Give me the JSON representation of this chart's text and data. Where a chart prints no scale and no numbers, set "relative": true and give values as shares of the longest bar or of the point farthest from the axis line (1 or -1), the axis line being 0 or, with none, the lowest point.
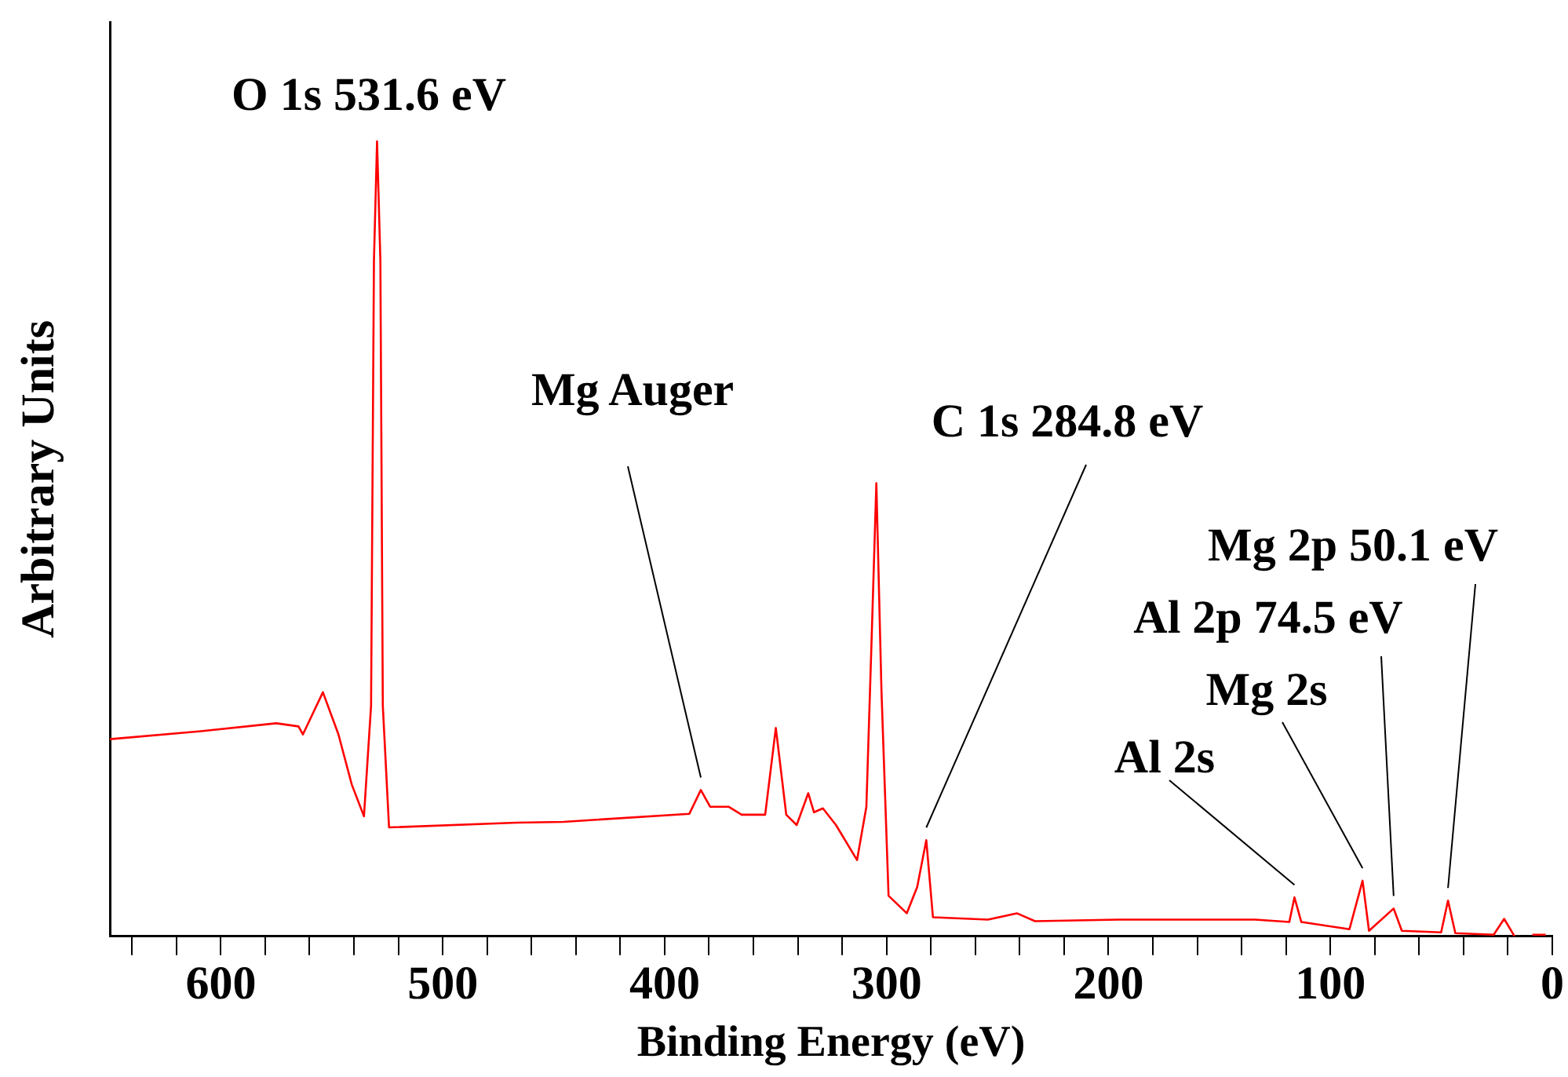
{
  "chart_data": {
    "type": "line",
    "relative": true,
    "xlabel": "Binding Energy (eV)",
    "ylabel": "Arbitrary Units",
    "xlim": [
      650,
      0
    ],
    "xticks": [
      {
        "value": 640,
        "label": null
      },
      {
        "value": 620,
        "label": null
      },
      600,
      {
        "value": 580,
        "label": null
      },
      {
        "value": 560,
        "label": null
      },
      {
        "value": 540,
        "label": null
      },
      {
        "value": 520,
        "label": null
      },
      500,
      {
        "value": 480,
        "label": null
      },
      {
        "value": 460,
        "label": null
      },
      {
        "value": 440,
        "label": null
      },
      {
        "value": 420,
        "label": null
      },
      400,
      {
        "value": 380,
        "label": null
      },
      {
        "value": 360,
        "label": null
      },
      {
        "value": 340,
        "label": null
      },
      {
        "value": 320,
        "label": null
      },
      300,
      {
        "value": 280,
        "label": null
      },
      {
        "value": 260,
        "label": null
      },
      {
        "value": 240,
        "label": null
      },
      {
        "value": 220,
        "label": null
      },
      200,
      {
        "value": 180,
        "label": null
      },
      {
        "value": 160,
        "label": null
      },
      {
        "value": 140,
        "label": null
      },
      {
        "value": 120,
        "label": null
      },
      100,
      {
        "value": 80,
        "label": null
      },
      {
        "value": 60,
        "label": null
      },
      {
        "value": 40,
        "label": null
      },
      {
        "value": 20,
        "label": null
      },
      0
    ],
    "series": [
      {
        "color": "#ff0000",
        "x": [
          650,
          609,
          575,
          565,
          563,
          554,
          547,
          541,
          535.5,
          532.3,
          531.0,
          529.6,
          528.1,
          527,
          524.2,
          466.8,
          445.6,
          388.9,
          383.7,
          379.5,
          371.2,
          365.3,
          354.7,
          349.9,
          345.2,
          340.5,
          335.3,
          332.7,
          328.7,
          322.8,
          313.3,
          309.1,
          306.7,
          304.6,
          302.3,
          299.1,
          290.9,
          286.2,
          282.1,
          279.1,
          254.3,
          241.3,
          233.1,
          195.3,
          133.9,
          118.5,
          116.2,
          113.1,
          91.4,
          85.5,
          82.6,
          71.5,
          67.8,
          50.1,
          47.0,
          43.7,
          26.4,
          21.7,
          17.0,
          12,
          9,
          3
        ],
        "values": [
          0.248,
          0.258,
          0.268,
          0.264,
          0.254,
          0.307,
          0.254,
          0.191,
          0.151,
          0.29,
          0.85,
          1.0,
          0.85,
          0.29,
          0.137,
          0.143,
          0.144,
          0.154,
          0.184,
          0.163,
          0.163,
          0.153,
          0.153,
          0.262,
          0.153,
          0.14,
          0.18,
          0.156,
          0.161,
          0.14,
          0.096,
          0.163,
          0.377,
          0.57,
          0.309,
          0.051,
          0.029,
          0.062,
          0.121,
          0.024,
          0.021,
          0.029,
          0.019,
          0.021,
          0.021,
          0.018,
          0.049,
          0.018,
          0.009,
          0.07,
          0.007,
          0.035,
          0.007,
          0.005,
          0.045,
          0.004,
          0.002,
          0.022,
          0.0,
          null,
          0.002,
          0.002
        ]
      }
    ],
    "annotations": [
      {
        "text": "O 1s 531.6 eV",
        "x": 529.6,
        "y": 1.0
      },
      {
        "text": "Mg Auger",
        "x": 383.7,
        "y": 0.184
      },
      {
        "text": "C 1s 284.8 eV",
        "x": 282.1,
        "y": 0.121
      },
      {
        "text": "Mg 2p 50.1 eV",
        "x": 47.0,
        "y": 0.045
      },
      {
        "text": "Al 2p 74.5 eV",
        "x": 71.5,
        "y": 0.035
      },
      {
        "text": "Mg 2s",
        "x": 85.5,
        "y": 0.07
      },
      {
        "text": "Al 2s",
        "x": 116.2,
        "y": 0.049
      }
    ]
  }
}
